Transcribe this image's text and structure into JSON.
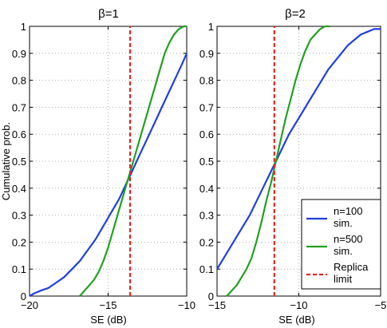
{
  "chart_data": [
    {
      "type": "line",
      "title": "β=1",
      "xlabel": "SE (dB)",
      "ylabel": "Cumulative prob.",
      "xlim": [
        -20,
        -10
      ],
      "ylim": [
        0,
        1
      ],
      "xticks": [
        -20,
        -15,
        -10
      ],
      "xtick_labels": [
        "−20",
        "−15",
        "−10"
      ],
      "yticks": [
        0,
        0.1,
        0.2,
        0.3,
        0.4,
        0.5,
        0.6,
        0.7,
        0.8,
        0.9,
        1
      ],
      "ytick_labels": [
        "0",
        "0.1",
        "0.2",
        "0.3",
        "0.4",
        "0.5",
        "0.6",
        "0.7",
        "0.8",
        "0.9",
        "1"
      ],
      "grid": true,
      "series": [
        {
          "name": "n=100 sim.",
          "color": "#1f3fe0",
          "style": "solid",
          "x": [
            -20,
            -19.7,
            -19.3,
            -18.8,
            -18.3,
            -17.8,
            -17.3,
            -16.8,
            -16.3,
            -15.8,
            -15.3,
            -14.8,
            -14.3,
            -13.9,
            -13.5,
            -13.1,
            -12.7,
            -12.3,
            -11.9,
            -11.5,
            -11.1,
            -10.7,
            -10.3,
            -10
          ],
          "y": [
            0,
            0.01,
            0.02,
            0.03,
            0.05,
            0.07,
            0.1,
            0.13,
            0.17,
            0.21,
            0.26,
            0.31,
            0.36,
            0.41,
            0.46,
            0.51,
            0.56,
            0.61,
            0.66,
            0.71,
            0.76,
            0.81,
            0.86,
            0.9
          ]
        },
        {
          "name": "n=500 sim.",
          "color": "#22a020",
          "style": "solid",
          "x": [
            -16.8,
            -16.5,
            -16.2,
            -15.9,
            -15.6,
            -15.3,
            -15,
            -14.7,
            -14.4,
            -14.1,
            -13.8,
            -13.5,
            -13.2,
            -12.9,
            -12.6,
            -12.3,
            -12,
            -11.7,
            -11.4,
            -11.1,
            -10.8,
            -10.5,
            -10.2,
            -10
          ],
          "y": [
            0,
            0.02,
            0.04,
            0.06,
            0.09,
            0.13,
            0.18,
            0.24,
            0.3,
            0.36,
            0.42,
            0.48,
            0.54,
            0.6,
            0.66,
            0.72,
            0.78,
            0.84,
            0.9,
            0.94,
            0.97,
            0.99,
            1,
            1
          ]
        },
        {
          "name": "Replica limit",
          "color": "#e8251f",
          "style": "dashed",
          "x": [
            -13.6,
            -13.6
          ],
          "y": [
            0,
            1
          ]
        }
      ]
    },
    {
      "type": "line",
      "title": "β=2",
      "xlabel": "SE (dB)",
      "ylabel": "",
      "xlim": [
        -15,
        -5
      ],
      "ylim": [
        0,
        1
      ],
      "xticks": [
        -15,
        -10,
        -5
      ],
      "xtick_labels": [
        "−15",
        "−10",
        "−5"
      ],
      "yticks": [
        0,
        0.1,
        0.2,
        0.3,
        0.4,
        0.5,
        0.6,
        0.7,
        0.8,
        0.9,
        1
      ],
      "ytick_labels": [
        "0",
        "0.1",
        "0.2",
        "0.3",
        "0.4",
        "0.5",
        "0.6",
        "0.7",
        "0.8",
        "0.9",
        "1"
      ],
      "grid": true,
      "legend_position": "bottom-right",
      "series": [
        {
          "name": "n=100 sim.",
          "color": "#1f3fe0",
          "style": "solid",
          "x": [
            -15,
            -14.6,
            -14.2,
            -13.8,
            -13.4,
            -13,
            -12.6,
            -12.2,
            -11.8,
            -11.4,
            -11,
            -10.6,
            -10.2,
            -9.8,
            -9.4,
            -9,
            -8.6,
            -8.2,
            -7.8,
            -7.4,
            -7,
            -6.6,
            -6.2,
            -5.8,
            -5.4,
            -5
          ],
          "y": [
            0.1,
            0.14,
            0.18,
            0.22,
            0.26,
            0.3,
            0.35,
            0.4,
            0.45,
            0.5,
            0.55,
            0.6,
            0.64,
            0.68,
            0.72,
            0.76,
            0.8,
            0.84,
            0.87,
            0.9,
            0.93,
            0.95,
            0.97,
            0.98,
            0.99,
            0.99
          ]
        },
        {
          "name": "n=500 sim.",
          "color": "#22a020",
          "style": "solid",
          "x": [
            -14.4,
            -14.1,
            -13.8,
            -13.5,
            -13.2,
            -12.9,
            -12.6,
            -12.3,
            -12,
            -11.7,
            -11.4,
            -11.1,
            -10.8,
            -10.5,
            -10.2,
            -9.9,
            -9.6,
            -9.3,
            -9,
            -8.7,
            -8.4,
            -8.1
          ],
          "y": [
            0,
            0.02,
            0.04,
            0.07,
            0.1,
            0.14,
            0.2,
            0.27,
            0.35,
            0.42,
            0.5,
            0.58,
            0.66,
            0.73,
            0.8,
            0.86,
            0.91,
            0.95,
            0.97,
            0.99,
            1,
            1
          ]
        },
        {
          "name": "Replica limit",
          "color": "#e8251f",
          "style": "dashed",
          "x": [
            -11.5,
            -11.5
          ],
          "y": [
            0,
            1
          ]
        }
      ]
    }
  ],
  "legend": {
    "items": [
      {
        "label_line1": "n=100",
        "label_line2": "sim.",
        "color": "#1f3fe0",
        "style": "solid"
      },
      {
        "label_line1": "n=500",
        "label_line2": "sim.",
        "color": "#22a020",
        "style": "solid"
      },
      {
        "label_line1": "Replica",
        "label_line2": "limit",
        "color": "#e8251f",
        "style": "dashed"
      }
    ]
  }
}
